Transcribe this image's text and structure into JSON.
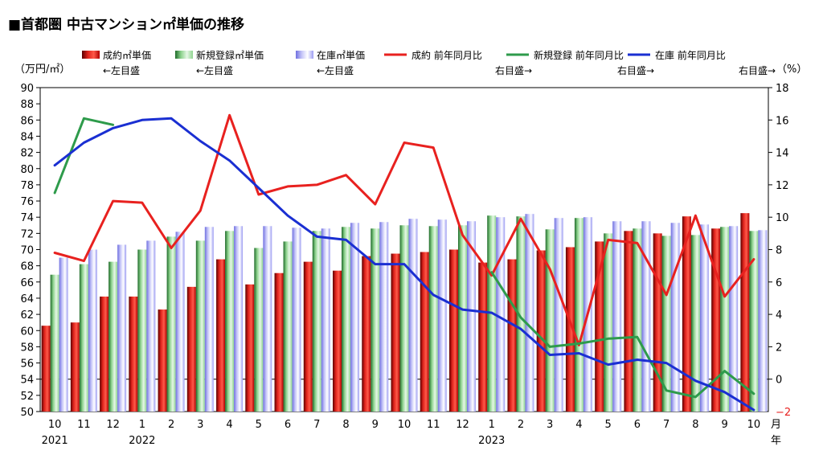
{
  "chart_data": {
    "type": "bar+line",
    "title": "■首都圏 中古マンション㎡単価の推移",
    "left_axis_unit": "（万円/㎡）",
    "right_axis_unit": "（%）",
    "left_ylim": [
      50,
      90
    ],
    "left_ticks": [
      "50",
      "52",
      "54",
      "56",
      "58",
      "60",
      "62",
      "64",
      "66",
      "68",
      "70",
      "72",
      "74",
      "76",
      "78",
      "80",
      "82",
      "84",
      "86",
      "88",
      "90"
    ],
    "right_ylim": [
      -2,
      18
    ],
    "right_ticks": [
      "18",
      "16",
      "14",
      "12",
      "10",
      "8",
      "6",
      "4",
      "2",
      "0"
    ],
    "right_neg_tick": "−2",
    "categories": [
      "10",
      "11",
      "12",
      "1",
      "2",
      "3",
      "4",
      "5",
      "6",
      "7",
      "8",
      "9",
      "10",
      "11",
      "12",
      "1",
      "2",
      "3",
      "4",
      "5",
      "6",
      "7",
      "8",
      "9",
      "10"
    ],
    "year_labels": [
      {
        "index": 0,
        "text": "2021"
      },
      {
        "index": 3,
        "text": "2022"
      },
      {
        "index": 15,
        "text": "2023"
      }
    ],
    "x_unit_month": "月",
    "x_unit_year": "年",
    "bar_series": [
      {
        "name": "成約㎡単価",
        "note": "←左目盛",
        "color": "#e0231c",
        "values": [
          60.6,
          61.0,
          64.2,
          64.2,
          62.6,
          65.4,
          68.8,
          65.7,
          67.1,
          68.5,
          67.4,
          69.2,
          69.5,
          69.7,
          70.0,
          68.4,
          68.8,
          69.9,
          70.3,
          71.0,
          72.3,
          72.0,
          74.1,
          72.6,
          74.5
        ]
      },
      {
        "name": "新規登録㎡単価",
        "note": "←左目盛",
        "color": "#7fc67f",
        "values": [
          66.9,
          68.2,
          68.5,
          70.0,
          71.6,
          71.1,
          72.3,
          70.2,
          71.0,
          72.3,
          72.8,
          72.6,
          73.0,
          72.9,
          73.0,
          74.2,
          74.1,
          72.5,
          73.9,
          72.0,
          72.6,
          71.7,
          71.8,
          72.8,
          72.3
        ]
      },
      {
        "name": "在庫㎡単価",
        "note": "←左目盛",
        "color": "#9c9cf2",
        "values": [
          69.0,
          70.0,
          70.6,
          71.1,
          72.2,
          72.8,
          72.9,
          72.9,
          72.7,
          72.6,
          73.3,
          73.4,
          73.8,
          73.7,
          73.5,
          74.0,
          74.4,
          73.9,
          74.0,
          73.5,
          73.5,
          73.3,
          73.1,
          72.9,
          72.4
        ]
      }
    ],
    "line_series": [
      {
        "name": "成約 前年同月比",
        "note": "右目盛→",
        "color": "#e8211f",
        "values": [
          7.8,
          7.3,
          11.0,
          10.9,
          8.1,
          10.4,
          16.3,
          11.4,
          11.9,
          12.0,
          12.6,
          10.8,
          14.6,
          14.3,
          8.9,
          6.4,
          9.9,
          6.8,
          2.1,
          8.6,
          8.4,
          5.2,
          10.1,
          5.1,
          7.4
        ]
      },
      {
        "name": "新規登録 前年同月比",
        "note": "右目盛→",
        "color": "#2e9b4b",
        "values": [
          11.5,
          16.1,
          15.7,
          null,
          null,
          null,
          null,
          null,
          null,
          null,
          null,
          null,
          null,
          null,
          null,
          6.6,
          3.8,
          2.0,
          2.2,
          2.5,
          2.6,
          -0.7,
          -1.1,
          0.5,
          -0.9
        ]
      },
      {
        "name": "在庫 前年同月比",
        "note": "右目盛→",
        "color": "#1a2fd2",
        "values": [
          13.2,
          14.6,
          15.5,
          16.0,
          16.1,
          14.7,
          13.5,
          11.8,
          10.1,
          8.8,
          8.6,
          7.1,
          7.1,
          5.2,
          4.3,
          4.1,
          3.1,
          1.5,
          1.6,
          0.9,
          1.2,
          1.0,
          -0.1,
          -0.8,
          -1.9
        ]
      }
    ],
    "zero_line_right": 0
  }
}
